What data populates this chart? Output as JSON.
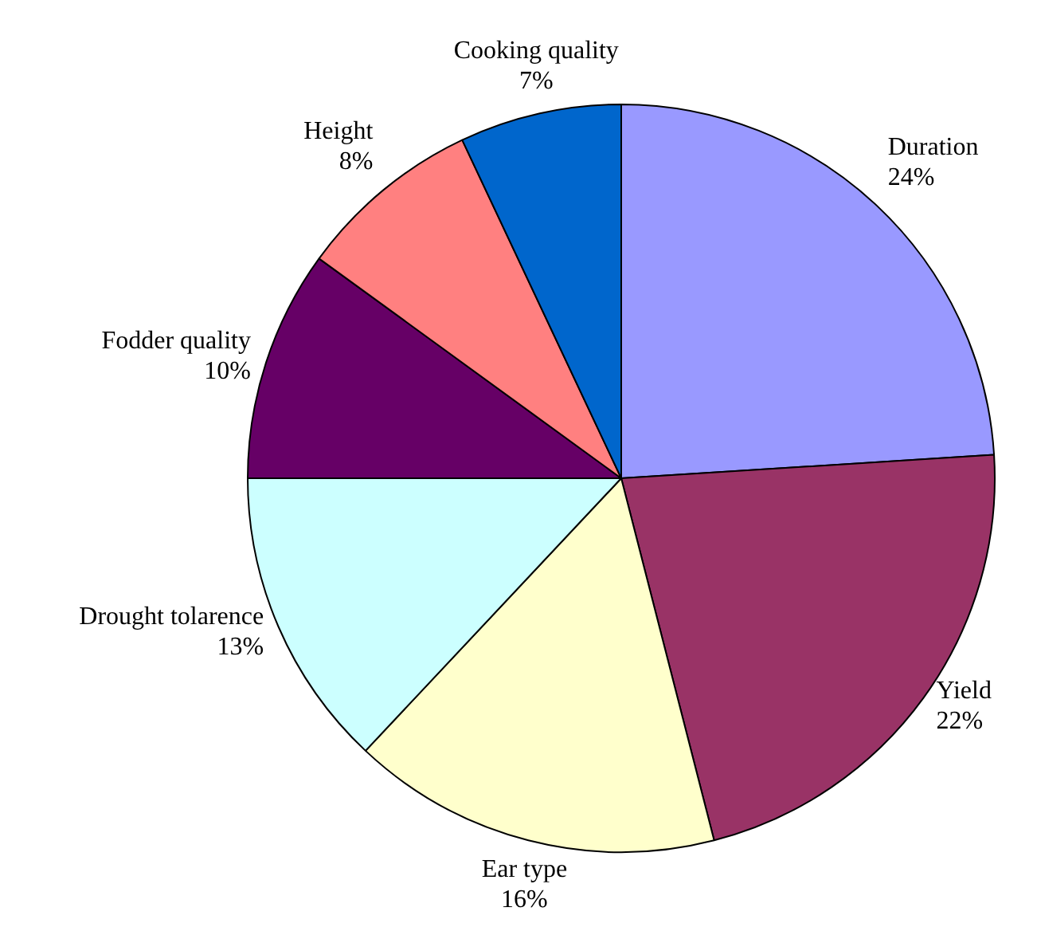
{
  "chart_data": {
    "type": "pie",
    "categories": [
      "Duration",
      "Yield",
      "Ear type",
      "Drought tolarence",
      "Fodder quality",
      "Height",
      "Cooking quality"
    ],
    "values": [
      24,
      22,
      16,
      13,
      10,
      8,
      7
    ],
    "value_labels": [
      "24%",
      "22%",
      "16%",
      "13%",
      "10%",
      "8%",
      "7%"
    ],
    "colors": [
      "#9999ff",
      "#993366",
      "#ffffcc",
      "#ccffff",
      "#660066",
      "#ff8080",
      "#0066cc"
    ],
    "legend": false
  }
}
